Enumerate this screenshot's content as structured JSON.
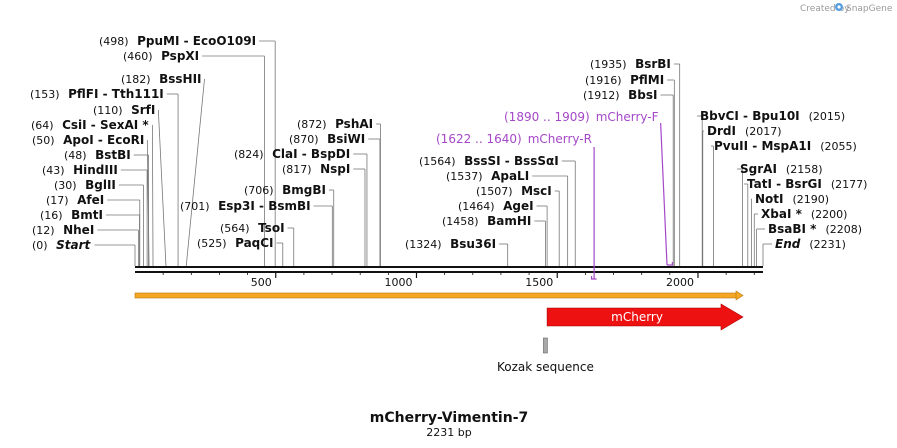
{
  "credit": {
    "created_by": "Created by",
    "brand": "SnapGene"
  },
  "sequence": {
    "name": "mCherry-Vimentin-7",
    "length_label": "2231 bp",
    "length": 2231
  },
  "axis_ticks": [
    "500",
    "1000",
    "1500",
    "2000"
  ],
  "enzymes_left": [
    {
      "pos": "(498)",
      "name": "PpuMI",
      "name2": "EcoO109I",
      "site": 498
    },
    {
      "pos": "(460)",
      "name": "PspXI",
      "site": 460
    },
    {
      "pos": "(182)",
      "name": "BssHII",
      "site": 182
    },
    {
      "pos": "(153)",
      "name": "PflFI",
      "name2": "Tth111I",
      "site": 153
    },
    {
      "pos": "(110)",
      "name": "SrfI",
      "site": 110
    },
    {
      "pos": "(64)",
      "name": "CsiI",
      "name2": "SexAI *",
      "site": 64
    },
    {
      "pos": "(50)",
      "name": "ApoI",
      "name2": "EcoRI",
      "site": 50
    },
    {
      "pos": "(48)",
      "name": "BstBI",
      "site": 48
    },
    {
      "pos": "(43)",
      "name": "HindIII",
      "site": 43
    },
    {
      "pos": "(30)",
      "name": "BglII",
      "site": 30
    },
    {
      "pos": "(17)",
      "name": "AfeI",
      "site": 17
    },
    {
      "pos": "(16)",
      "name": "BmtI",
      "site": 16
    },
    {
      "pos": "(12)",
      "name": "NheI",
      "site": 12
    },
    {
      "pos": "(0)",
      "name": "Start",
      "site": 0,
      "italic": true
    }
  ],
  "enzymes_mid": [
    {
      "pos": "(872)",
      "name": "PshAI",
      "site": 872
    },
    {
      "pos": "(870)",
      "name": "BsiWI",
      "site": 870
    },
    {
      "pos": "(824)",
      "name": "ClaI",
      "name2": "BspDI",
      "site": 824
    },
    {
      "pos": "(817)",
      "name": "NspI",
      "site": 817
    },
    {
      "pos": "(706)",
      "name": "BmgBI",
      "site": 706
    },
    {
      "pos": "(701)",
      "name": "Esp3I",
      "name2": "BsmBI",
      "site": 701
    },
    {
      "pos": "(564)",
      "name": "TsoI",
      "site": 564
    },
    {
      "pos": "(525)",
      "name": "PaqCI",
      "site": 525
    }
  ],
  "enzymes_center": [
    {
      "pos": "(1564)",
      "name": "BssSI",
      "name2": "BssSαI",
      "site": 1564
    },
    {
      "pos": "(1537)",
      "name": "ApaLI",
      "site": 1537
    },
    {
      "pos": "(1507)",
      "name": "MscI",
      "site": 1507
    },
    {
      "pos": "(1464)",
      "name": "AgeI",
      "site": 1464
    },
    {
      "pos": "(1458)",
      "name": "BamHI",
      "site": 1458
    },
    {
      "pos": "(1324)",
      "name": "Bsu36I",
      "site": 1324
    }
  ],
  "enzymes_upper": [
    {
      "pos": "(1935)",
      "name": "BsrBI",
      "site": 1935
    },
    {
      "pos": "(1916)",
      "name": "PflMI",
      "site": 1916
    },
    {
      "pos": "(1912)",
      "name": "BbsI",
      "site": 1912
    }
  ],
  "enzymes_right": [
    {
      "name": "BbvCI",
      "name2": "Bpu10I",
      "pos": "(2015)",
      "site": 2015
    },
    {
      "name": "DrdI",
      "pos": "(2017)",
      "site": 2017
    },
    {
      "name": "PvuII",
      "name2": "MspA1I",
      "pos": "(2055)",
      "site": 2055
    },
    {
      "name": "SgrAI",
      "pos": "(2158)",
      "site": 2158
    },
    {
      "name": "TatI",
      "name2": "BsrGI",
      "pos": "(2177)",
      "site": 2177
    },
    {
      "name": "NotI",
      "pos": "(2190)",
      "site": 2190
    },
    {
      "name": "XbaI *",
      "pos": "(2200)",
      "site": 2200
    },
    {
      "name": "BsaBI *",
      "pos": "(2208)",
      "site": 2208
    },
    {
      "name": "End",
      "pos": "(2231)",
      "site": 2231,
      "italic": true
    }
  ],
  "primers": [
    {
      "range": "(1890 .. 1909)",
      "name": "mCherry-F",
      "start": 1890,
      "end": 1909,
      "color": "#a548c8"
    },
    {
      "range": "(1622 .. 1640)",
      "name": "mCherry-R",
      "start": 1622,
      "end": 1640,
      "color": "#a548c8"
    }
  ],
  "features": {
    "orf": {
      "start": 0,
      "end": 2160,
      "color": "#f5a623"
    },
    "mcherry": {
      "label": "mCherry",
      "start": 1464,
      "end": 2160,
      "color": "#ee1111"
    },
    "kozak": {
      "label": "Kozak sequence",
      "start": 1458,
      "end": 1464,
      "color": "#a8a8a8"
    }
  }
}
